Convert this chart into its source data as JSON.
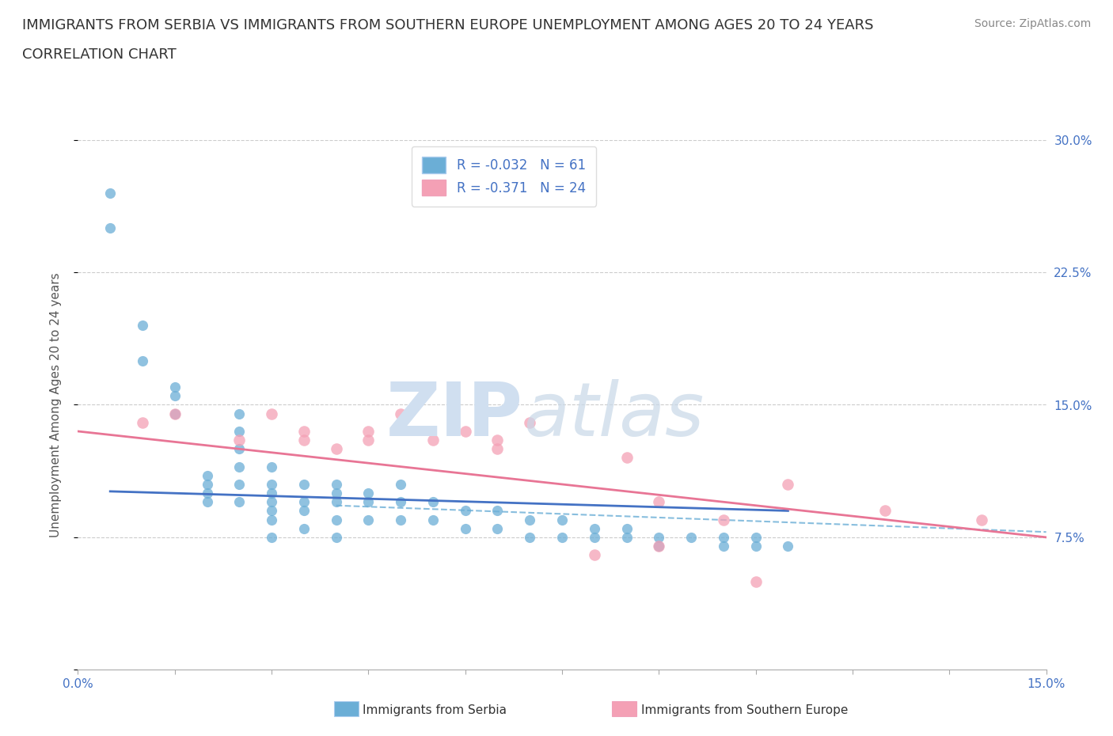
{
  "title_line1": "IMMIGRANTS FROM SERBIA VS IMMIGRANTS FROM SOUTHERN EUROPE UNEMPLOYMENT AMONG AGES 20 TO 24 YEARS",
  "title_line2": "CORRELATION CHART",
  "source_text": "Source: ZipAtlas.com",
  "ylabel": "Unemployment Among Ages 20 to 24 years",
  "xlim": [
    0.0,
    0.15
  ],
  "ylim": [
    0.0,
    0.3
  ],
  "serbia_R": "-0.032",
  "serbia_N": "61",
  "south_eu_R": "-0.371",
  "south_eu_N": "24",
  "serbia_color": "#6baed6",
  "south_eu_color": "#f4a0b5",
  "serbia_scatter_x": [
    0.005,
    0.005,
    0.01,
    0.01,
    0.015,
    0.015,
    0.015,
    0.02,
    0.02,
    0.02,
    0.02,
    0.025,
    0.025,
    0.025,
    0.025,
    0.025,
    0.025,
    0.03,
    0.03,
    0.03,
    0.03,
    0.03,
    0.03,
    0.03,
    0.035,
    0.035,
    0.035,
    0.035,
    0.04,
    0.04,
    0.04,
    0.04,
    0.04,
    0.045,
    0.045,
    0.045,
    0.05,
    0.05,
    0.05,
    0.055,
    0.055,
    0.06,
    0.06,
    0.065,
    0.065,
    0.07,
    0.07,
    0.075,
    0.075,
    0.08,
    0.08,
    0.085,
    0.085,
    0.09,
    0.09,
    0.095,
    0.1,
    0.1,
    0.105,
    0.105,
    0.11
  ],
  "serbia_scatter_y": [
    0.27,
    0.25,
    0.195,
    0.175,
    0.155,
    0.145,
    0.16,
    0.11,
    0.105,
    0.1,
    0.095,
    0.145,
    0.135,
    0.125,
    0.115,
    0.105,
    0.095,
    0.115,
    0.105,
    0.1,
    0.095,
    0.09,
    0.085,
    0.075,
    0.105,
    0.095,
    0.09,
    0.08,
    0.105,
    0.1,
    0.095,
    0.085,
    0.075,
    0.1,
    0.095,
    0.085,
    0.105,
    0.095,
    0.085,
    0.095,
    0.085,
    0.09,
    0.08,
    0.09,
    0.08,
    0.085,
    0.075,
    0.085,
    0.075,
    0.08,
    0.075,
    0.08,
    0.075,
    0.075,
    0.07,
    0.075,
    0.075,
    0.07,
    0.075,
    0.07,
    0.07
  ],
  "south_eu_scatter_x": [
    0.01,
    0.015,
    0.025,
    0.03,
    0.035,
    0.035,
    0.04,
    0.045,
    0.045,
    0.05,
    0.055,
    0.06,
    0.065,
    0.065,
    0.07,
    0.08,
    0.085,
    0.09,
    0.09,
    0.1,
    0.105,
    0.11,
    0.125,
    0.14
  ],
  "south_eu_scatter_y": [
    0.14,
    0.145,
    0.13,
    0.145,
    0.135,
    0.13,
    0.125,
    0.135,
    0.13,
    0.145,
    0.13,
    0.135,
    0.125,
    0.13,
    0.14,
    0.065,
    0.12,
    0.07,
    0.095,
    0.085,
    0.05,
    0.105,
    0.09,
    0.085
  ],
  "serbia_trend_x": [
    0.005,
    0.11
  ],
  "serbia_trend_y": [
    0.101,
    0.09
  ],
  "south_eu_trend_x": [
    0.0,
    0.15
  ],
  "south_eu_trend_y": [
    0.135,
    0.075
  ],
  "dashed_trend_x": [
    0.04,
    0.15
  ],
  "dashed_trend_y": [
    0.093,
    0.078
  ],
  "watermark_zip": "ZIP",
  "watermark_atlas": "atlas",
  "background_color": "#ffffff",
  "grid_color": "#cccccc",
  "tick_color": "#4472c4",
  "label_color": "#555555",
  "title_fontsize": 13,
  "tick_fontsize": 11,
  "ylabel_fontsize": 11
}
